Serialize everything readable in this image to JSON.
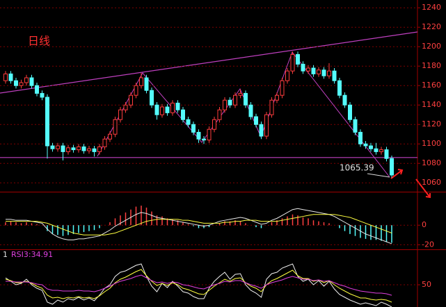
{
  "chart_data": [
    {
      "type": "candlestick",
      "label": "日线",
      "open": [
        1165,
        1172,
        1165,
        1160,
        1163,
        1168,
        1160,
        1152,
        1148,
        1098,
        1095,
        1098,
        1092,
        1096,
        1094,
        1097,
        1093,
        1095,
        1092,
        1097,
        1105,
        1110,
        1125,
        1135,
        1140,
        1150,
        1160,
        1168,
        1155,
        1140,
        1130,
        1138,
        1132,
        1142,
        1135,
        1125,
        1120,
        1112,
        1105,
        1104,
        1115,
        1125,
        1135,
        1145,
        1140,
        1150,
        1152,
        1140,
        1128,
        1120,
        1108,
        1130,
        1145,
        1150,
        1165,
        1175,
        1192,
        1182,
        1175,
        1178,
        1172,
        1176,
        1170,
        1175,
        1165,
        1150,
        1140,
        1125,
        1112,
        1100,
        1098,
        1095,
        1092,
        1094,
        1085
      ],
      "high": [
        1175,
        1175,
        1168,
        1166,
        1171,
        1171,
        1163,
        1155,
        1151,
        1101,
        1101,
        1101,
        1099,
        1099,
        1100,
        1100,
        1098,
        1098,
        1100,
        1108,
        1113,
        1128,
        1138,
        1143,
        1153,
        1163,
        1173,
        1171,
        1158,
        1143,
        1141,
        1141,
        1145,
        1145,
        1138,
        1128,
        1123,
        1115,
        1108,
        1118,
        1128,
        1138,
        1148,
        1148,
        1153,
        1156,
        1155,
        1143,
        1131,
        1123,
        1133,
        1148,
        1153,
        1168,
        1178,
        1195,
        1195,
        1185,
        1181,
        1181,
        1179,
        1179,
        1183,
        1178,
        1168,
        1153,
        1143,
        1128,
        1115,
        1103,
        1101,
        1101,
        1097,
        1097,
        1088
      ],
      "low": [
        1162,
        1162,
        1157,
        1157,
        1160,
        1157,
        1149,
        1145,
        1085,
        1092,
        1092,
        1083,
        1089,
        1091,
        1091,
        1090,
        1090,
        1087,
        1089,
        1094,
        1102,
        1107,
        1122,
        1132,
        1137,
        1147,
        1157,
        1152,
        1137,
        1125,
        1127,
        1129,
        1129,
        1132,
        1122,
        1117,
        1109,
        1101,
        1100,
        1101,
        1112,
        1122,
        1132,
        1137,
        1137,
        1147,
        1137,
        1125,
        1117,
        1105,
        1105,
        1127,
        1142,
        1147,
        1162,
        1172,
        1179,
        1172,
        1172,
        1169,
        1169,
        1167,
        1167,
        1162,
        1147,
        1137,
        1122,
        1109,
        1097,
        1095,
        1092,
        1089,
        1089,
        1082,
        1065.39
      ],
      "close": [
        1172,
        1165,
        1160,
        1163,
        1168,
        1160,
        1152,
        1148,
        1098,
        1095,
        1098,
        1092,
        1096,
        1094,
        1097,
        1093,
        1095,
        1092,
        1097,
        1105,
        1110,
        1125,
        1135,
        1140,
        1150,
        1160,
        1168,
        1155,
        1140,
        1130,
        1138,
        1132,
        1142,
        1135,
        1125,
        1120,
        1112,
        1105,
        1104,
        1115,
        1125,
        1135,
        1145,
        1140,
        1150,
        1152,
        1140,
        1128,
        1120,
        1108,
        1130,
        1145,
        1150,
        1165,
        1175,
        1192,
        1182,
        1175,
        1178,
        1172,
        1176,
        1170,
        1175,
        1165,
        1150,
        1140,
        1125,
        1112,
        1100,
        1098,
        1095,
        1092,
        1094,
        1085,
        1068
      ],
      "up_color": "#ff3c3c",
      "down_color": "#54fcfc",
      "support_level": 1086,
      "support_color": "#c040c0",
      "ylim": [
        1052,
        1248
      ],
      "yticks": [
        1060,
        1080,
        1100,
        1120,
        1140,
        1160,
        1180,
        1200,
        1220,
        1240
      ]
    },
    {
      "type": "macd",
      "hist": [
        3,
        4,
        3,
        2,
        3,
        2,
        1,
        0,
        -6,
        -9,
        -10,
        -11,
        -10,
        -9,
        -8,
        -7,
        -6,
        -5,
        -3,
        0,
        3,
        7,
        10,
        13,
        16,
        19,
        20,
        18,
        14,
        10,
        9,
        7,
        6,
        5,
        3,
        1,
        -1,
        -3,
        -3,
        -2,
        0,
        2,
        4,
        4,
        5,
        4,
        2,
        0,
        -2,
        -3,
        0,
        3,
        5,
        7,
        9,
        11,
        10,
        8,
        7,
        5,
        4,
        3,
        2,
        0,
        -3,
        -6,
        -9,
        -11,
        -13,
        -14,
        -15,
        -15,
        -16,
        -17,
        -18
      ],
      "series": [
        {
          "color": "#e8e8e8",
          "values": [
            6,
            6,
            5,
            5,
            5,
            4,
            3,
            2,
            -4,
            -9,
            -12,
            -14,
            -15,
            -15,
            -14,
            -14,
            -13,
            -12,
            -11,
            -8,
            -5,
            -1,
            2,
            5,
            8,
            11,
            13,
            12,
            10,
            8,
            7,
            6,
            5,
            4,
            3,
            2,
            1,
            0,
            -1,
            0,
            2,
            4,
            5,
            6,
            7,
            8,
            7,
            5,
            3,
            1,
            2,
            5,
            7,
            10,
            13,
            16,
            17,
            16,
            15,
            14,
            13,
            12,
            11,
            9,
            6,
            3,
            0,
            -3,
            -6,
            -9,
            -11,
            -13,
            -15,
            -17,
            -19
          ]
        },
        {
          "color": "#ffff40",
          "values": [
            4,
            4,
            4,
            4,
            4,
            4,
            4,
            3,
            2,
            0,
            -2,
            -4,
            -6,
            -8,
            -9,
            -10,
            -10,
            -10,
            -10,
            -10,
            -9,
            -8,
            -6,
            -4,
            -2,
            0,
            2,
            4,
            5,
            6,
            6,
            6,
            6,
            6,
            5,
            5,
            4,
            3,
            2,
            2,
            2,
            2,
            3,
            3,
            4,
            4,
            5,
            5,
            5,
            4,
            4,
            4,
            4,
            5,
            6,
            7,
            8,
            9,
            10,
            11,
            11,
            11,
            11,
            11,
            10,
            9,
            8,
            6,
            4,
            2,
            0,
            -2,
            -4,
            -6,
            -8
          ]
        }
      ],
      "ylim": [
        -24,
        30
      ],
      "yticks": [
        -20,
        0
      ]
    },
    {
      "type": "rsi",
      "title": "1",
      "subtitle": "RSI3:34.91",
      "series": [
        {
          "color": "#f0f0f0",
          "values": [
            60,
            55,
            50,
            52,
            58,
            50,
            45,
            42,
            25,
            22,
            28,
            25,
            30,
            28,
            32,
            28,
            31,
            27,
            35,
            45,
            50,
            62,
            68,
            70,
            74,
            78,
            80,
            62,
            48,
            40,
            52,
            46,
            55,
            48,
            40,
            38,
            33,
            30,
            30,
            45,
            55,
            62,
            68,
            58,
            65,
            66,
            50,
            42,
            38,
            32,
            58,
            66,
            68,
            74,
            77,
            80,
            62,
            55,
            58,
            50,
            56,
            48,
            55,
            44,
            36,
            32,
            28,
            25,
            22,
            24,
            22,
            20,
            25,
            22,
            18
          ]
        },
        {
          "color": "#ffff40",
          "values": [
            58,
            56,
            53,
            53,
            55,
            52,
            48,
            45,
            35,
            31,
            32,
            30,
            32,
            31,
            33,
            31,
            32,
            30,
            34,
            40,
            45,
            53,
            58,
            61,
            65,
            69,
            72,
            63,
            55,
            49,
            52,
            49,
            53,
            50,
            45,
            43,
            40,
            37,
            36,
            42,
            48,
            53,
            58,
            55,
            59,
            60,
            53,
            48,
            45,
            40,
            50,
            56,
            59,
            63,
            67,
            71,
            63,
            59,
            59,
            55,
            57,
            53,
            56,
            50,
            45,
            41,
            37,
            34,
            31,
            31,
            29,
            28,
            29,
            28,
            25
          ]
        },
        {
          "color": "#e040e0",
          "values": [
            55,
            55,
            54,
            54,
            54,
            53,
            51,
            50,
            44,
            42,
            42,
            41,
            41,
            41,
            42,
            41,
            41,
            40,
            42,
            45,
            48,
            52,
            55,
            57,
            59,
            62,
            64,
            60,
            56,
            53,
            54,
            52,
            54,
            53,
            50,
            49,
            47,
            45,
            44,
            47,
            50,
            52,
            55,
            54,
            56,
            56,
            53,
            50,
            48,
            45,
            50,
            53,
            55,
            57,
            60,
            62,
            60,
            58,
            58,
            56,
            57,
            55,
            56,
            53,
            50,
            48,
            45,
            43,
            41,
            40,
            39,
            38,
            38,
            37,
            34.91
          ]
        }
      ],
      "ylim": [
        20,
        85
      ],
      "yticks": [
        50
      ]
    }
  ]
}
